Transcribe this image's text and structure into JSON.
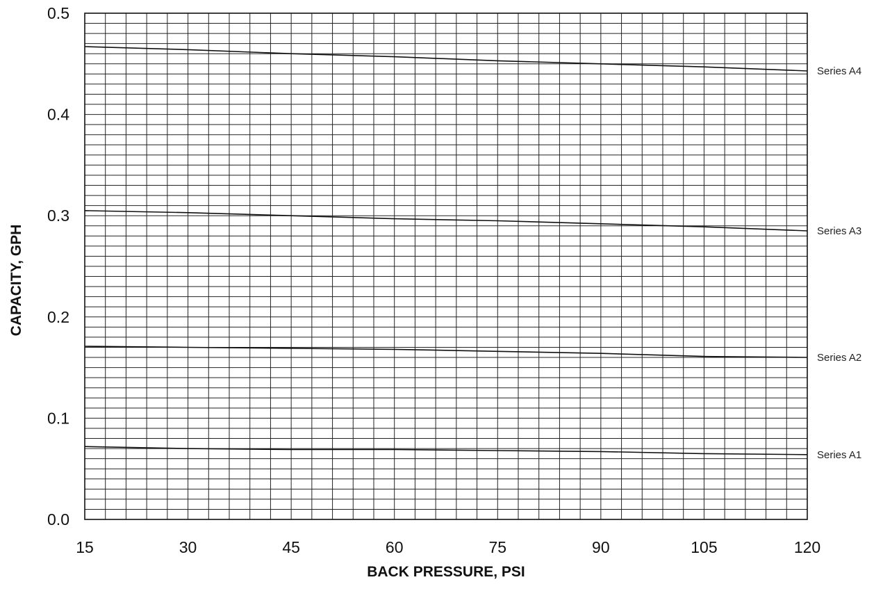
{
  "chart_data": {
    "type": "line",
    "title": "",
    "xlabel": "BACK PRESSURE, PSI",
    "ylabel": "CAPACITY, GPH",
    "xlim": [
      15,
      120
    ],
    "ylim": [
      0.0,
      0.5
    ],
    "x_ticks": [
      15,
      30,
      45,
      60,
      75,
      90,
      105,
      120
    ],
    "x_tick_labels": [
      "15",
      "30",
      "45",
      "60",
      "75",
      "90",
      "105",
      "120"
    ],
    "y_ticks": [
      0.0,
      0.1,
      0.2,
      0.3,
      0.4,
      0.5
    ],
    "y_tick_labels": [
      "0.0",
      "0.1",
      "0.2",
      "0.3",
      "0.4",
      "0.5"
    ],
    "grid": true,
    "x_minor_step": 3,
    "y_minor_step": 0.01,
    "legend": "series labels at right end of each line",
    "x": [
      15,
      30,
      45,
      60,
      75,
      90,
      105,
      120
    ],
    "series": [
      {
        "name": "Series A4",
        "values": [
          0.467,
          0.464,
          0.46,
          0.457,
          0.453,
          0.45,
          0.447,
          0.443
        ]
      },
      {
        "name": "Series A3",
        "values": [
          0.305,
          0.303,
          0.3,
          0.297,
          0.295,
          0.292,
          0.289,
          0.285
        ]
      },
      {
        "name": "Series A2",
        "values": [
          0.171,
          0.17,
          0.169,
          0.168,
          0.166,
          0.164,
          0.161,
          0.16
        ]
      },
      {
        "name": "Series A1",
        "values": [
          0.072,
          0.07,
          0.069,
          0.069,
          0.068,
          0.067,
          0.065,
          0.064
        ]
      }
    ]
  }
}
